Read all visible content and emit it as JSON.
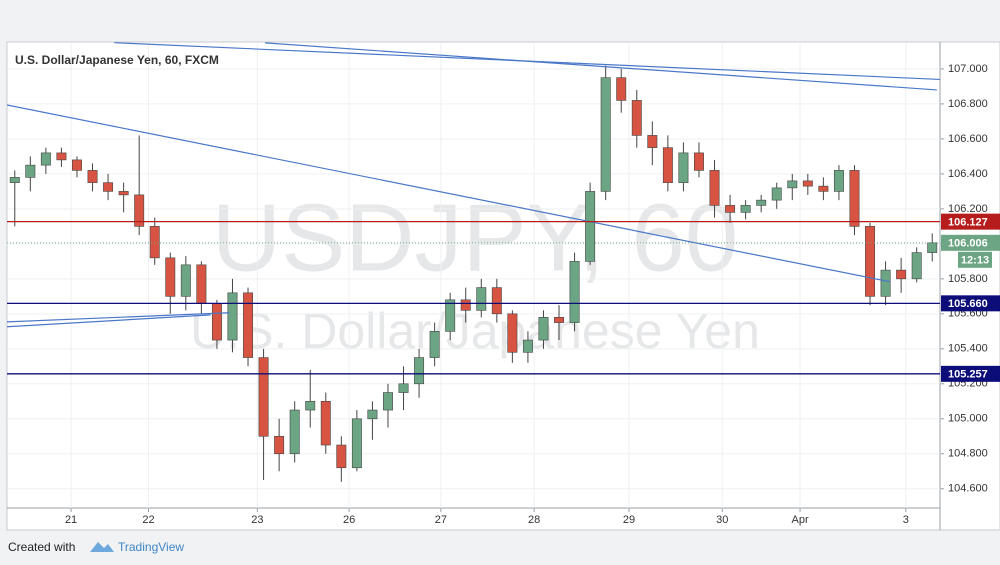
{
  "chart_data": {
    "type": "candlestick",
    "title": "U.S. Dollar/Japanese Yen, 60, FXCM",
    "watermark": [
      "USDJPY, 60",
      "U.S. Dollar/Japanese Yen"
    ],
    "up_color": "#6ba583",
    "down_color": "#d75442",
    "ylim": [
      104.49,
      107.154
    ],
    "xlim": [
      0,
      60
    ],
    "yticks": [
      {
        "value": 104.6,
        "label": "104.600"
      },
      {
        "value": 104.8,
        "label": "104.800"
      },
      {
        "value": 105,
        "label": "105.000"
      },
      {
        "value": 105.2,
        "label": "105.200"
      },
      {
        "value": 105.4,
        "label": "105.400"
      },
      {
        "value": 105.6,
        "label": "105.600"
      },
      {
        "value": 105.8,
        "label": "105.800"
      },
      {
        "value": 106,
        "label": "106.000"
      },
      {
        "value": 106.2,
        "label": "106.200"
      },
      {
        "value": 106.4,
        "label": "106.400"
      },
      {
        "value": 106.6,
        "label": "106.600"
      },
      {
        "value": 106.8,
        "label": "106.800"
      },
      {
        "value": 107,
        "label": "107.000"
      }
    ],
    "xticks": [
      {
        "value": 4.12,
        "label": "21"
      },
      {
        "value": 9.1,
        "label": "22"
      },
      {
        "value": 16.1,
        "label": "23"
      },
      {
        "value": 22.0,
        "label": "26"
      },
      {
        "value": 27.9,
        "label": "27"
      },
      {
        "value": 33.9,
        "label": "28"
      },
      {
        "value": 40.0,
        "label": "29"
      },
      {
        "value": 46.0,
        "label": "30"
      },
      {
        "value": 51.0,
        "label": "Apr"
      },
      {
        "value": 57.8,
        "label": "3"
      }
    ],
    "open": [
      106.35,
      106.38,
      106.45,
      106.52,
      106.48,
      106.42,
      106.35,
      106.3,
      106.28,
      106.1,
      105.92,
      105.7,
      105.88,
      105.66,
      105.45,
      105.72,
      105.35,
      104.9,
      104.8,
      105.05,
      105.1,
      104.85,
      104.72,
      105.0,
      105.05,
      105.15,
      105.2,
      105.35,
      105.5,
      105.68,
      105.62,
      105.75,
      105.6,
      105.38,
      105.45,
      105.58,
      105.55,
      105.9,
      106.3,
      106.95,
      106.82,
      106.62,
      106.55,
      106.35,
      106.52,
      106.42,
      106.22,
      106.18,
      106.22,
      106.25,
      106.32,
      106.36,
      106.33,
      106.3,
      106.42,
      106.1,
      105.7,
      105.85,
      105.8,
      105.95
    ],
    "high": [
      106.42,
      106.5,
      106.55,
      106.55,
      106.5,
      106.46,
      106.4,
      106.35,
      106.62,
      106.15,
      105.95,
      105.93,
      105.9,
      105.68,
      105.8,
      105.75,
      105.4,
      105.0,
      105.1,
      105.28,
      105.15,
      104.9,
      105.05,
      105.1,
      105.2,
      105.3,
      105.4,
      105.55,
      105.72,
      105.75,
      105.8,
      105.8,
      105.62,
      105.5,
      105.62,
      105.65,
      105.95,
      106.35,
      107.02,
      107.0,
      106.88,
      106.7,
      106.62,
      106.58,
      106.58,
      106.48,
      106.28,
      106.25,
      106.28,
      106.35,
      106.4,
      106.4,
      106.38,
      106.45,
      106.45,
      106.12,
      105.9,
      105.92,
      105.98,
      106.06
    ],
    "low": [
      106.1,
      106.3,
      106.4,
      106.44,
      106.38,
      106.3,
      106.25,
      106.18,
      106.05,
      105.88,
      105.6,
      105.62,
      105.6,
      105.4,
      105.38,
      105.3,
      104.65,
      104.7,
      104.75,
      104.95,
      104.8,
      104.64,
      104.7,
      104.88,
      104.95,
      105.05,
      105.12,
      105.3,
      105.45,
      105.55,
      105.58,
      105.55,
      105.32,
      105.32,
      105.4,
      105.45,
      105.5,
      105.88,
      106.25,
      106.75,
      106.55,
      106.45,
      106.3,
      106.3,
      106.38,
      106.15,
      106.12,
      106.14,
      106.18,
      106.2,
      106.25,
      106.28,
      106.25,
      106.25,
      106.05,
      105.65,
      105.65,
      105.72,
      105.78,
      105.9
    ],
    "close": [
      106.38,
      106.45,
      106.52,
      106.48,
      106.42,
      106.35,
      106.3,
      106.28,
      106.1,
      105.92,
      105.7,
      105.88,
      105.66,
      105.45,
      105.72,
      105.35,
      104.9,
      104.8,
      105.05,
      105.1,
      104.85,
      104.72,
      105.0,
      105.05,
      105.15,
      105.2,
      105.35,
      105.5,
      105.68,
      105.62,
      105.75,
      105.6,
      105.38,
      105.45,
      105.58,
      105.55,
      105.9,
      106.3,
      106.95,
      106.82,
      106.62,
      106.55,
      106.35,
      106.52,
      106.42,
      106.22,
      106.18,
      106.22,
      106.25,
      106.32,
      106.36,
      106.33,
      106.3,
      106.42,
      106.1,
      105.7,
      105.85,
      105.8,
      105.95,
      106.006
    ],
    "price_lines": [
      {
        "value": 106.127,
        "color": "#b71c1c",
        "style": "solid"
      },
      {
        "value": 106.006,
        "color": "#6ba583",
        "style": "dotted",
        "countdown": "12:13"
      },
      {
        "value": 105.66,
        "label": "105.660",
        "color": "#0d0d7a",
        "style": "solid"
      },
      {
        "value": 105.257,
        "color": "#0d0d7a",
        "style": "solid"
      }
    ],
    "trendlines": [
      {
        "x": [
          6.9,
          60
        ],
        "y": [
          107.15,
          106.94
        ]
      },
      {
        "x": [
          16.6,
          59.8
        ],
        "y": [
          107.149,
          106.88
        ]
      },
      {
        "x": [
          0,
          56.8
        ],
        "y": [
          106.794,
          105.783
        ]
      },
      {
        "x": [
          0,
          14.3
        ],
        "y": [
          105.554,
          105.606
        ]
      },
      {
        "x": [
          0,
          13.1
        ],
        "y": [
          105.526,
          105.594
        ]
      }
    ],
    "trendline_color": "#4a78c9"
  },
  "footer": {
    "prefix": "Created with",
    "brand": "TradingView"
  }
}
